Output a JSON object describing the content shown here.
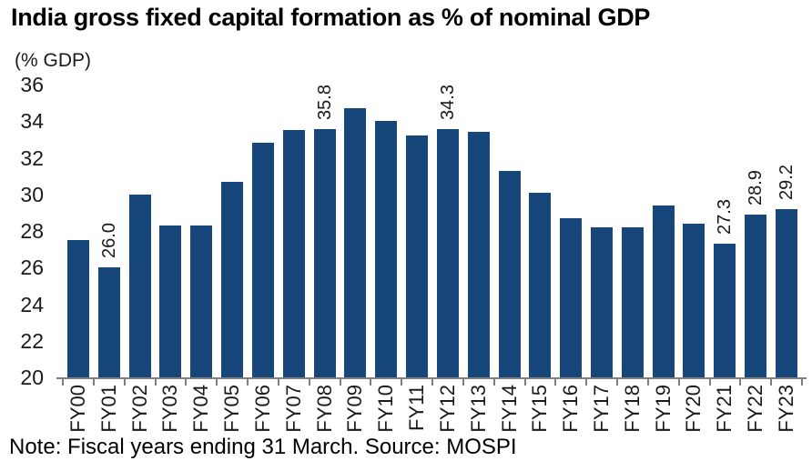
{
  "header": {
    "title": "India gross fixed capital formation as % of nominal GDP"
  },
  "footer": {
    "note": "Note: Fiscal years ending 31 March. Source: MOSPI"
  },
  "colors": {
    "bar": "#17477a",
    "axis": "#7f7f7f",
    "text": "#1a1a1a",
    "title": "#000000"
  },
  "chart_data": {
    "type": "bar",
    "title": "India gross fixed capital formation as % of nominal GDP",
    "axis_unit_label": "(% GDP)",
    "xlabel": "",
    "ylabel": "(% GDP)",
    "categories": [
      "FY00",
      "FY01",
      "FY02",
      "FY03",
      "FY04",
      "FY05",
      "FY06",
      "FY07",
      "FY08",
      "FY09",
      "FY10",
      "FY11",
      "FY12",
      "FY13",
      "FY14",
      "FY15",
      "FY16",
      "FY17",
      "FY18",
      "FY19",
      "FY20",
      "FY21",
      "FY22",
      "FY23"
    ],
    "values": [
      27.5,
      26.0,
      30.0,
      28.3,
      28.3,
      30.7,
      32.8,
      33.5,
      35.8,
      34.7,
      34.0,
      33.2,
      34.3,
      33.4,
      31.3,
      30.1,
      28.7,
      28.2,
      28.2,
      29.4,
      28.4,
      27.3,
      28.9,
      29.2
    ],
    "data_labels": {
      "FY01": "26.0",
      "FY08": "35.8",
      "FY12": "34.3",
      "FY21": "27.3",
      "FY22": "28.9",
      "FY23": "29.2"
    },
    "ylim": [
      20,
      36
    ],
    "yticks": [
      20,
      22,
      24,
      26,
      28,
      30,
      32,
      34,
      36
    ],
    "grid": false,
    "legend_position": "none",
    "note": "Note: Fiscal years ending 31 March. Source: MOSPI"
  }
}
